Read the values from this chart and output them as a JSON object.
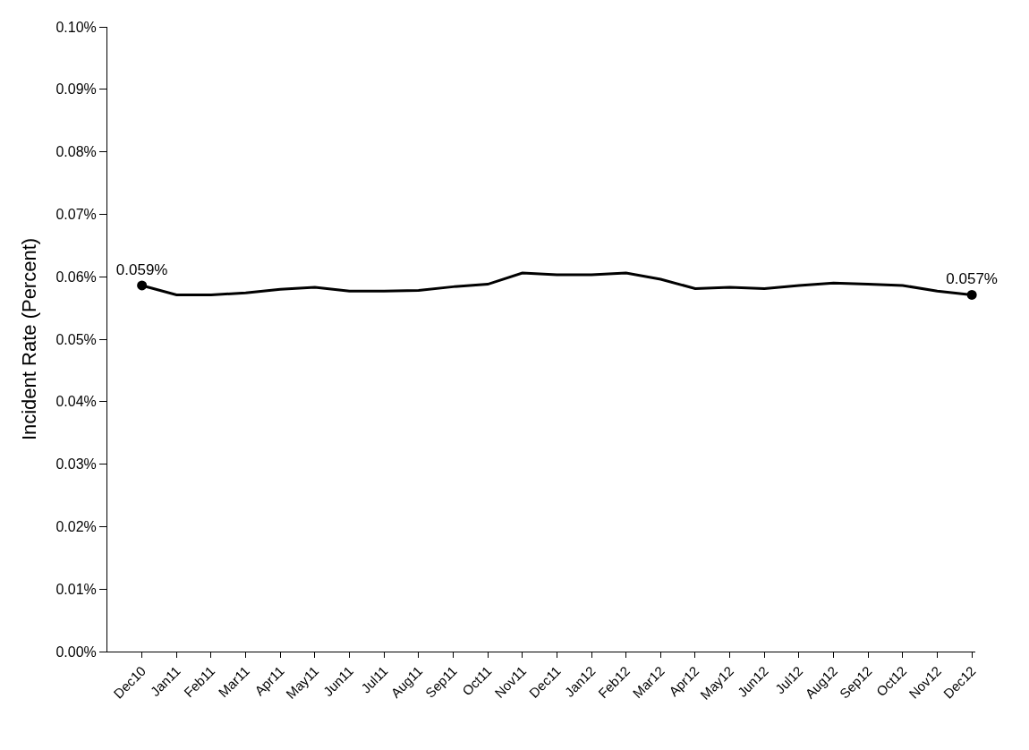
{
  "chart_data": {
    "type": "line",
    "ylabel": "Incident Rate (Percent)",
    "categories": [
      "Dec10",
      "Jan11",
      "Feb11",
      "Mar11",
      "Apr11",
      "May11",
      "Jun11",
      "Jul11",
      "Aug11",
      "Sep11",
      "Oct11",
      "Nov11",
      "Dec11",
      "Jan12",
      "Feb12",
      "Mar12",
      "Apr12",
      "May12",
      "Jun12",
      "Jul12",
      "Aug12",
      "Sep12",
      "Oct12",
      "Nov12",
      "Dec12"
    ],
    "series": [
      {
        "color": "#000000",
        "values": [
          0.0586,
          0.0571,
          0.0571,
          0.0574,
          0.058,
          0.0583,
          0.0577,
          0.0577,
          0.0578,
          0.0584,
          0.0588,
          0.0606,
          0.0603,
          0.0603,
          0.0606,
          0.0596,
          0.0581,
          0.0583,
          0.0581,
          0.0586,
          0.059,
          0.0588,
          0.0586,
          0.0577,
          0.0571
        ]
      },
      {
        "type": "scatter",
        "color": "#000000",
        "marker": "circle",
        "x": [
          "Dec10",
          "Dec12"
        ],
        "values": [
          0.0586,
          0.0571
        ],
        "value_labels": [
          "0.059%",
          "0.057%"
        ]
      }
    ],
    "ylim": [
      0,
      0.1
    ],
    "yticks": [
      {
        "value": 0,
        "label": "0.00%"
      },
      {
        "value": 0.01,
        "label": "0.01%"
      },
      {
        "value": 0.02,
        "label": "0.02%"
      },
      {
        "value": 0.03,
        "label": "0.03%"
      },
      {
        "value": 0.04,
        "label": "0.04%"
      },
      {
        "value": 0.05,
        "label": "0.05%"
      },
      {
        "value": 0.06,
        "label": "0.06%"
      },
      {
        "value": 0.07,
        "label": "0.07%"
      },
      {
        "value": 0.08,
        "label": "0.08%"
      },
      {
        "value": 0.09,
        "label": "0.09%"
      },
      {
        "value": 0.1,
        "label": "0.10%"
      }
    ],
    "grid": false,
    "marker": "none",
    "line_style": "solid"
  }
}
